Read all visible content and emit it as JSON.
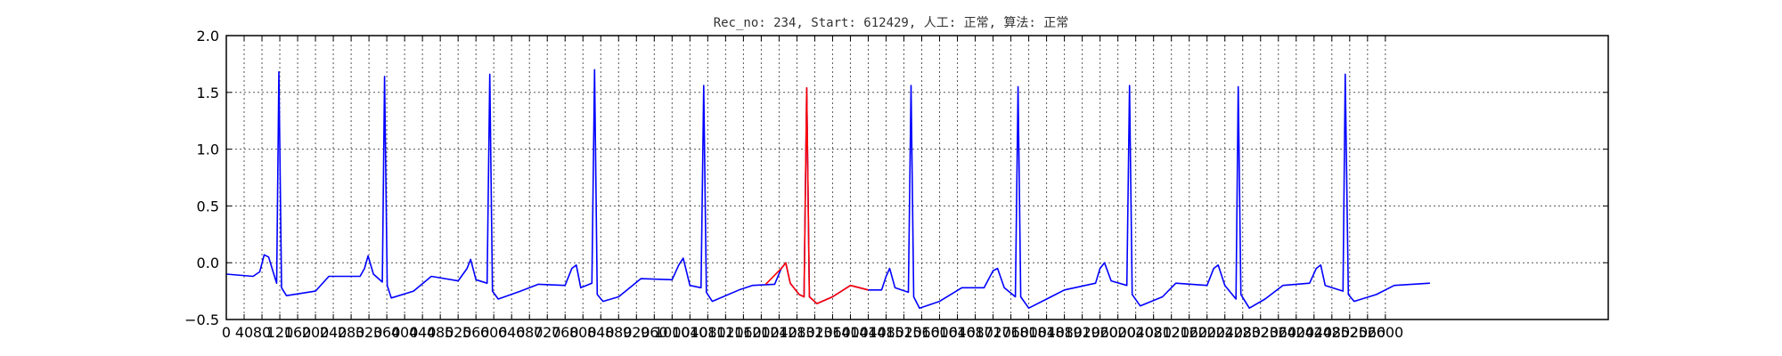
{
  "chart_data": {
    "type": "line",
    "title": "Rec_no: 234, Start: 612429, 人工: 正常, 算法: 正常",
    "xlabel": "",
    "ylabel": "",
    "xlim": [
      0,
      3100
    ],
    "ylim": [
      -0.5,
      2.0
    ],
    "grid": true,
    "yticks": [
      -0.5,
      0.0,
      0.5,
      1.0,
      1.5,
      2.0
    ],
    "ytick_labels": [
      "−0.5",
      "0.0",
      "0.5",
      "1.0",
      "1.5",
      "2.0"
    ],
    "xticks": [
      0,
      40,
      80,
      120,
      160,
      200,
      240,
      280,
      320,
      360,
      400,
      440,
      480,
      520,
      560,
      600,
      640,
      680,
      720,
      760,
      800,
      840,
      880,
      920,
      960,
      1000,
      1040,
      1080,
      1120,
      1160,
      1200,
      1240,
      1280,
      1320,
      1360,
      1400,
      1440,
      1480,
      1520,
      1560,
      1600,
      1640,
      1680,
      1720,
      1760,
      1800,
      1840,
      1880,
      1920,
      1960,
      2000,
      2040,
      2080,
      2120,
      2160,
      2200,
      2240,
      2280,
      2320,
      2360,
      2400,
      2440,
      2480,
      2520,
      2560,
      2600
    ],
    "xtick_labels": [
      "0",
      "40",
      "80",
      "120",
      "160",
      "200",
      "240",
      "280",
      "320",
      "360",
      "400",
      "440",
      "480",
      "520",
      "560",
      "600",
      "640",
      "680",
      "720",
      "760",
      "800",
      "840",
      "880",
      "920",
      "960",
      "1000",
      "1040",
      "1080",
      "1120",
      "1160",
      "1200",
      "1240",
      "1280",
      "1320",
      "1360",
      "1400",
      "1440",
      "1480",
      "1520",
      "1560",
      "1600",
      "1640",
      "1680",
      "1720",
      "1760",
      "1800",
      "1840",
      "1880",
      "1920",
      "1960",
      "2000",
      "2040",
      "2080",
      "2120",
      "2160",
      "2200",
      "2240",
      "2280",
      "2320",
      "2360",
      "2400",
      "2440",
      "2480",
      "2520",
      "2560",
      "2600"
    ],
    "baseline": [
      [
        0,
        -0.1
      ],
      [
        60,
        -0.12
      ],
      [
        75,
        -0.08
      ],
      [
        85,
        0.07
      ],
      [
        95,
        0.05
      ],
      [
        105,
        -0.08
      ],
      [
        113,
        -0.18
      ],
      [
        118,
        1.68
      ],
      [
        124,
        -0.22
      ],
      [
        135,
        -0.29
      ],
      [
        200,
        -0.25
      ],
      [
        230,
        -0.12
      ],
      [
        300,
        -0.12
      ],
      [
        310,
        -0.05
      ],
      [
        318,
        0.06
      ],
      [
        330,
        -0.1
      ],
      [
        350,
        -0.17
      ],
      [
        355,
        1.64
      ],
      [
        361,
        -0.2
      ],
      [
        370,
        -0.31
      ],
      [
        420,
        -0.25
      ],
      [
        460,
        -0.12
      ],
      [
        520,
        -0.16
      ],
      [
        540,
        -0.05
      ],
      [
        548,
        0.03
      ],
      [
        560,
        -0.15
      ],
      [
        585,
        -0.18
      ],
      [
        591,
        1.66
      ],
      [
        597,
        -0.25
      ],
      [
        610,
        -0.32
      ],
      [
        660,
        -0.25
      ],
      [
        700,
        -0.19
      ],
      [
        760,
        -0.2
      ],
      [
        775,
        -0.05
      ],
      [
        785,
        -0.02
      ],
      [
        795,
        -0.22
      ],
      [
        820,
        -0.18
      ],
      [
        826,
        1.7
      ],
      [
        832,
        -0.28
      ],
      [
        845,
        -0.34
      ],
      [
        880,
        -0.3
      ],
      [
        930,
        -0.14
      ],
      [
        1000,
        -0.15
      ],
      [
        1015,
        -0.02
      ],
      [
        1025,
        0.04
      ],
      [
        1040,
        -0.2
      ],
      [
        1065,
        -0.22
      ],
      [
        1071,
        1.56
      ],
      [
        1077,
        -0.26
      ],
      [
        1090,
        -0.34
      ],
      [
        1150,
        -0.24
      ],
      [
        1180,
        -0.2
      ],
      [
        1230,
        -0.19
      ],
      [
        1245,
        -0.05
      ],
      [
        1255,
        0.0
      ],
      [
        1265,
        -0.18
      ],
      [
        1285,
        -0.28
      ],
      [
        1296,
        -0.3
      ],
      [
        1302,
        1.54
      ],
      [
        1308,
        -0.3
      ],
      [
        1325,
        -0.36
      ],
      [
        1360,
        -0.3
      ],
      [
        1400,
        -0.2
      ],
      [
        1440,
        -0.24
      ],
      [
        1470,
        -0.24
      ],
      [
        1480,
        -0.12
      ],
      [
        1488,
        -0.05
      ],
      [
        1500,
        -0.22
      ],
      [
        1530,
        -0.26
      ],
      [
        1536,
        1.56
      ],
      [
        1542,
        -0.3
      ],
      [
        1555,
        -0.4
      ],
      [
        1600,
        -0.34
      ],
      [
        1650,
        -0.22
      ],
      [
        1700,
        -0.22
      ],
      [
        1720,
        -0.07
      ],
      [
        1730,
        -0.05
      ],
      [
        1745,
        -0.22
      ],
      [
        1770,
        -0.3
      ],
      [
        1776,
        1.55
      ],
      [
        1782,
        -0.3
      ],
      [
        1800,
        -0.4
      ],
      [
        1850,
        -0.3
      ],
      [
        1880,
        -0.24
      ],
      [
        1950,
        -0.18
      ],
      [
        1960,
        -0.05
      ],
      [
        1970,
        0.0
      ],
      [
        1985,
        -0.16
      ],
      [
        2020,
        -0.2
      ],
      [
        2026,
        1.56
      ],
      [
        2032,
        -0.28
      ],
      [
        2050,
        -0.38
      ],
      [
        2100,
        -0.3
      ],
      [
        2130,
        -0.18
      ],
      [
        2200,
        -0.2
      ],
      [
        2215,
        -0.05
      ],
      [
        2225,
        -0.02
      ],
      [
        2240,
        -0.2
      ],
      [
        2265,
        -0.32
      ],
      [
        2270,
        1.55
      ],
      [
        2276,
        -0.28
      ],
      [
        2295,
        -0.4
      ],
      [
        2330,
        -0.32
      ],
      [
        2370,
        -0.2
      ],
      [
        2430,
        -0.18
      ],
      [
        2445,
        -0.05
      ],
      [
        2455,
        -0.02
      ],
      [
        2465,
        -0.2
      ],
      [
        2505,
        -0.25
      ],
      [
        2510,
        1.66
      ],
      [
        2517,
        -0.28
      ],
      [
        2530,
        -0.34
      ],
      [
        2580,
        -0.28
      ],
      [
        2620,
        -0.2
      ],
      [
        2700,
        -0.18
      ]
    ],
    "highlight": [
      [
        1210,
        -0.19
      ],
      [
        1245,
        -0.05
      ],
      [
        1255,
        0.0
      ],
      [
        1265,
        -0.18
      ],
      [
        1285,
        -0.28
      ],
      [
        1296,
        -0.3
      ],
      [
        1302,
        1.54
      ],
      [
        1308,
        -0.3
      ],
      [
        1325,
        -0.36
      ],
      [
        1360,
        -0.3
      ],
      [
        1400,
        -0.2
      ],
      [
        1440,
        -0.24
      ]
    ],
    "line_color": "#0000ff",
    "highlight_color": "#ff0000"
  }
}
